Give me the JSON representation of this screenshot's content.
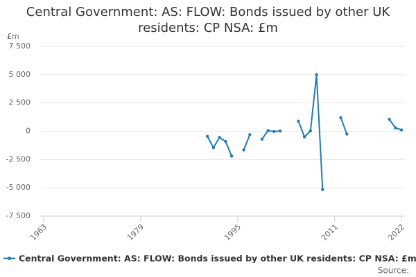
{
  "chart_data": {
    "type": "line",
    "title": "Central Government: AS: FLOW: Bonds issued by other UK residents: CP NSA: £m",
    "y_label": "£m",
    "source": "Source:",
    "x": [
      1990,
      1991,
      1992,
      1993,
      1994,
      1995,
      1996,
      1997,
      1998,
      1999,
      2000,
      2001,
      2002,
      2003,
      2004,
      2005,
      2006,
      2007,
      2008,
      2009,
      2010,
      2011,
      2012,
      2013,
      2014,
      2015,
      2016,
      2017,
      2018,
      2019,
      2020,
      2021,
      2022
    ],
    "series": [
      {
        "name": "Central Government: AS: FLOW: Bonds issued by other UK residents: CP NSA: £m",
        "color": "#1f7bb6",
        "values": [
          -450,
          -1450,
          -550,
          -900,
          -2200,
          null,
          -1650,
          -300,
          null,
          -700,
          50,
          -30,
          20,
          null,
          null,
          900,
          -500,
          30,
          5000,
          -5150,
          null,
          null,
          1200,
          -250,
          null,
          null,
          null,
          null,
          null,
          null,
          1050,
          300,
          120
        ]
      }
    ],
    "xlim": [
      1963,
      2022
    ],
    "xticks": [
      1963,
      1979,
      1995,
      2011,
      2022
    ],
    "ylim": [
      -7500,
      7500
    ],
    "yticks": [
      {
        "value": -7500,
        "label": "-7 500"
      },
      {
        "value": -5000,
        "label": "-5 000"
      },
      {
        "value": -2500,
        "label": "-2 500"
      },
      0,
      {
        "value": 2500,
        "label": "2 500"
      },
      {
        "value": 5000,
        "label": "5 000"
      },
      {
        "value": 7500,
        "label": "7 500"
      }
    ],
    "grid": true
  }
}
